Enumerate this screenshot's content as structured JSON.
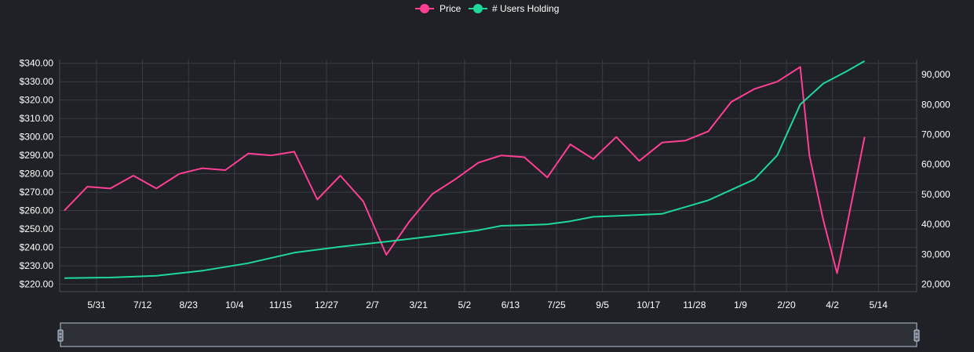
{
  "legend": {
    "price_label": "Price",
    "users_label": "# Users Holding"
  },
  "colors": {
    "background": "#1f2126",
    "price": "#ff3f94",
    "users": "#1ed99a",
    "grid": "#3a3d44"
  },
  "chart_data": {
    "type": "line",
    "x_tick_labels": [
      "5/31",
      "7/12",
      "8/23",
      "10/4",
      "11/15",
      "12/27",
      "2/7",
      "3/21",
      "5/2",
      "6/13",
      "7/25",
      "9/5",
      "10/17",
      "11/28",
      "1/9",
      "2/20",
      "4/2",
      "5/14"
    ],
    "y_left": {
      "ylim": [
        216,
        342
      ],
      "tick_values": [
        220,
        230,
        240,
        250,
        260,
        270,
        280,
        290,
        300,
        310,
        320,
        330,
        340
      ],
      "tick_labels": [
        "$220.00",
        "$230.00",
        "$240.00",
        "$250.00",
        "$260.00",
        "$270.00",
        "$280.00",
        "$290.00",
        "$300.00",
        "$310.00",
        "$320.00",
        "$330.00",
        "$340.00"
      ]
    },
    "y_right": {
      "ylim": [
        17500,
        95000
      ],
      "tick_values": [
        20000,
        30000,
        40000,
        50000,
        60000,
        70000,
        80000,
        90000
      ],
      "tick_labels": [
        "20,000",
        "30,000",
        "40,000",
        "50,000",
        "60,000",
        "70,000",
        "80,000",
        "90,000"
      ]
    },
    "grid": true,
    "legend_position": "top-center",
    "series": [
      {
        "name": "Price",
        "axis": "left",
        "x": [
          0,
          0.5,
          1,
          1.5,
          2,
          2.5,
          3,
          3.5,
          4,
          4.5,
          5,
          5.5,
          6,
          6.5,
          7,
          7.5,
          8,
          8.5,
          9,
          9.5,
          10,
          10.5,
          11,
          11.5,
          12,
          12.5,
          13,
          13.5,
          14,
          14.5,
          15,
          15.5,
          16,
          16.2,
          16.5,
          16.8,
          17,
          17.2,
          17.4
        ],
        "values": [
          260,
          273,
          272,
          279,
          272,
          280,
          283,
          282,
          291,
          290,
          292,
          266,
          279,
          265,
          236,
          254,
          269,
          277,
          286,
          290,
          289,
          278,
          296,
          288,
          300,
          287,
          297,
          298,
          303,
          319,
          326,
          330,
          338,
          290,
          255,
          226,
          250,
          275,
          300
        ]
      },
      {
        "name": "# Users Holding",
        "axis": "right",
        "x": [
          0,
          1,
          2,
          3,
          4,
          5,
          6,
          7,
          8,
          9,
          9.5,
          10,
          10.5,
          11,
          11.5,
          12,
          13,
          14,
          15,
          15.5,
          16,
          16.5,
          17,
          17.4
        ],
        "values": [
          22000,
          22200,
          22800,
          24500,
          27000,
          30500,
          32500,
          34200,
          36000,
          38000,
          39500,
          39700,
          40000,
          41000,
          42500,
          42800,
          43500,
          48000,
          55000,
          63000,
          80000,
          87000,
          91000,
          94500
        ]
      }
    ]
  }
}
